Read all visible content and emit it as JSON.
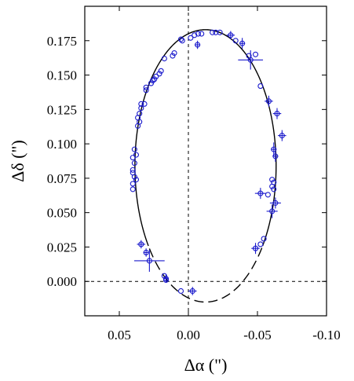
{
  "chart_data": {
    "type": "scatter",
    "title": "",
    "xlabel": "Δα (\")",
    "ylabel": "Δδ (\")",
    "xlim": [
      0.075,
      -0.1
    ],
    "ylim": [
      -0.025,
      0.2
    ],
    "x_inverted": true,
    "xticks": [
      0.05,
      0.0,
      -0.05,
      -0.1
    ],
    "xtick_labels": [
      "0.05",
      "0.00",
      "-0.05",
      "-0.10"
    ],
    "yticks": [
      0.0,
      0.025,
      0.05,
      0.075,
      0.1,
      0.125,
      0.15,
      0.175
    ],
    "ytick_labels": [
      "0.000",
      "0.025",
      "0.050",
      "0.075",
      "0.100",
      "0.125",
      "0.150",
      "0.175"
    ],
    "reference_lines": [
      {
        "orientation": "vertical",
        "value": 0.0,
        "style": "dashed"
      },
      {
        "orientation": "horizontal",
        "value": 0.0,
        "style": "dashed"
      }
    ],
    "orbit_fit": {
      "shape": "ellipse",
      "center_x": -0.0124,
      "center_y": 0.084,
      "semi_axis_x": 0.0511,
      "semi_axis_y": 0.099,
      "solid_from_y": 0.025
    },
    "marker_color": "#1a1acc",
    "series": [
      {
        "marker": "circle",
        "points": [
          {
            "x": 0.0054,
            "y": 0.176
          },
          {
            "x": 0.0044,
            "y": 0.175
          },
          {
            "x": -0.0016,
            "y": 0.177
          },
          {
            "x": -0.0044,
            "y": 0.179
          },
          {
            "x": -0.0071,
            "y": 0.18
          },
          {
            "x": -0.0095,
            "y": 0.18
          },
          {
            "x": -0.0174,
            "y": 0.181
          },
          {
            "x": -0.0198,
            "y": 0.181
          },
          {
            "x": -0.0228,
            "y": 0.181
          },
          {
            "x": -0.0342,
            "y": 0.175
          },
          {
            "x": -0.0438,
            "y": 0.164
          },
          {
            "x": -0.0486,
            "y": 0.165
          },
          {
            "x": -0.0522,
            "y": 0.142
          },
          {
            "x": 0.0174,
            "y": 0.162
          },
          {
            "x": 0.0114,
            "y": 0.164
          },
          {
            "x": 0.0102,
            "y": 0.166
          },
          {
            "x": 0.0198,
            "y": 0.153
          },
          {
            "x": 0.021,
            "y": 0.151
          },
          {
            "x": 0.0234,
            "y": 0.149
          },
          {
            "x": 0.0258,
            "y": 0.146
          },
          {
            "x": 0.027,
            "y": 0.144
          },
          {
            "x": 0.0246,
            "y": 0.147
          },
          {
            "x": 0.0306,
            "y": 0.141
          },
          {
            "x": 0.0306,
            "y": 0.139
          },
          {
            "x": 0.0342,
            "y": 0.129
          },
          {
            "x": 0.0342,
            "y": 0.126
          },
          {
            "x": 0.0318,
            "y": 0.129
          },
          {
            "x": 0.0354,
            "y": 0.122
          },
          {
            "x": 0.0366,
            "y": 0.119
          },
          {
            "x": 0.0354,
            "y": 0.116
          },
          {
            "x": 0.0366,
            "y": 0.113
          },
          {
            "x": 0.039,
            "y": 0.096
          },
          {
            "x": 0.0378,
            "y": 0.092
          },
          {
            "x": 0.0402,
            "y": 0.09
          },
          {
            "x": 0.039,
            "y": 0.086
          },
          {
            "x": 0.0402,
            "y": 0.081
          },
          {
            "x": 0.0402,
            "y": 0.079
          },
          {
            "x": 0.039,
            "y": 0.076
          },
          {
            "x": 0.0378,
            "y": 0.074
          },
          {
            "x": 0.0402,
            "y": 0.071
          },
          {
            "x": 0.0402,
            "y": 0.067
          },
          {
            "x": -0.0606,
            "y": 0.074
          },
          {
            "x": -0.0618,
            "y": 0.072
          },
          {
            "x": -0.0606,
            "y": 0.069
          },
          {
            "x": -0.0618,
            "y": 0.067
          },
          {
            "x": -0.0576,
            "y": 0.063
          },
          {
            "x": -0.0546,
            "y": 0.031
          },
          {
            "x": -0.0522,
            "y": 0.027
          },
          {
            "x": 0.0174,
            "y": 0.004
          },
          {
            "x": 0.0162,
            "y": 0.001
          },
          {
            "x": 0.0054,
            "y": -0.007
          }
        ]
      },
      {
        "marker": "circle-with-errorbars",
        "points": [
          {
            "x": -0.0066,
            "y": 0.172,
            "ex": 0.002,
            "ey": 0.003
          },
          {
            "x": -0.0306,
            "y": 0.179,
            "ex": 0.003,
            "ey": 0.003
          },
          {
            "x": -0.039,
            "y": 0.173,
            "ex": 0.002,
            "ey": 0.004
          },
          {
            "x": -0.045,
            "y": 0.161,
            "ex": 0.009,
            "ey": 0.007
          },
          {
            "x": -0.0582,
            "y": 0.131,
            "ex": 0.003,
            "ey": 0.004
          },
          {
            "x": -0.0642,
            "y": 0.122,
            "ex": 0.003,
            "ey": 0.004
          },
          {
            "x": -0.0678,
            "y": 0.106,
            "ex": 0.003,
            "ey": 0.004
          },
          {
            "x": -0.0618,
            "y": 0.096,
            "ex": 0.002,
            "ey": 0.005
          },
          {
            "x": -0.063,
            "y": 0.091,
            "ex": 0.002,
            "ey": 0.004
          },
          {
            "x": -0.063,
            "y": 0.057,
            "ex": 0.004,
            "ey": 0.004
          },
          {
            "x": -0.0606,
            "y": 0.051,
            "ex": 0.004,
            "ey": 0.005
          },
          {
            "x": -0.0522,
            "y": 0.064,
            "ex": 0.004,
            "ey": 0.004
          },
          {
            "x": -0.0486,
            "y": 0.024,
            "ex": 0.003,
            "ey": 0.004
          },
          {
            "x": 0.0342,
            "y": 0.027,
            "ex": 0.003,
            "ey": 0.003
          },
          {
            "x": 0.0306,
            "y": 0.021,
            "ex": 0.002,
            "ey": 0.003
          },
          {
            "x": 0.0282,
            "y": 0.015,
            "ex": 0.011,
            "ey": 0.008
          },
          {
            "x": 0.0162,
            "y": 0.002,
            "ex": 0.002,
            "ey": 0.003
          },
          {
            "x": -0.003,
            "y": -0.007,
            "ex": 0.003,
            "ey": 0.003
          }
        ]
      }
    ]
  }
}
